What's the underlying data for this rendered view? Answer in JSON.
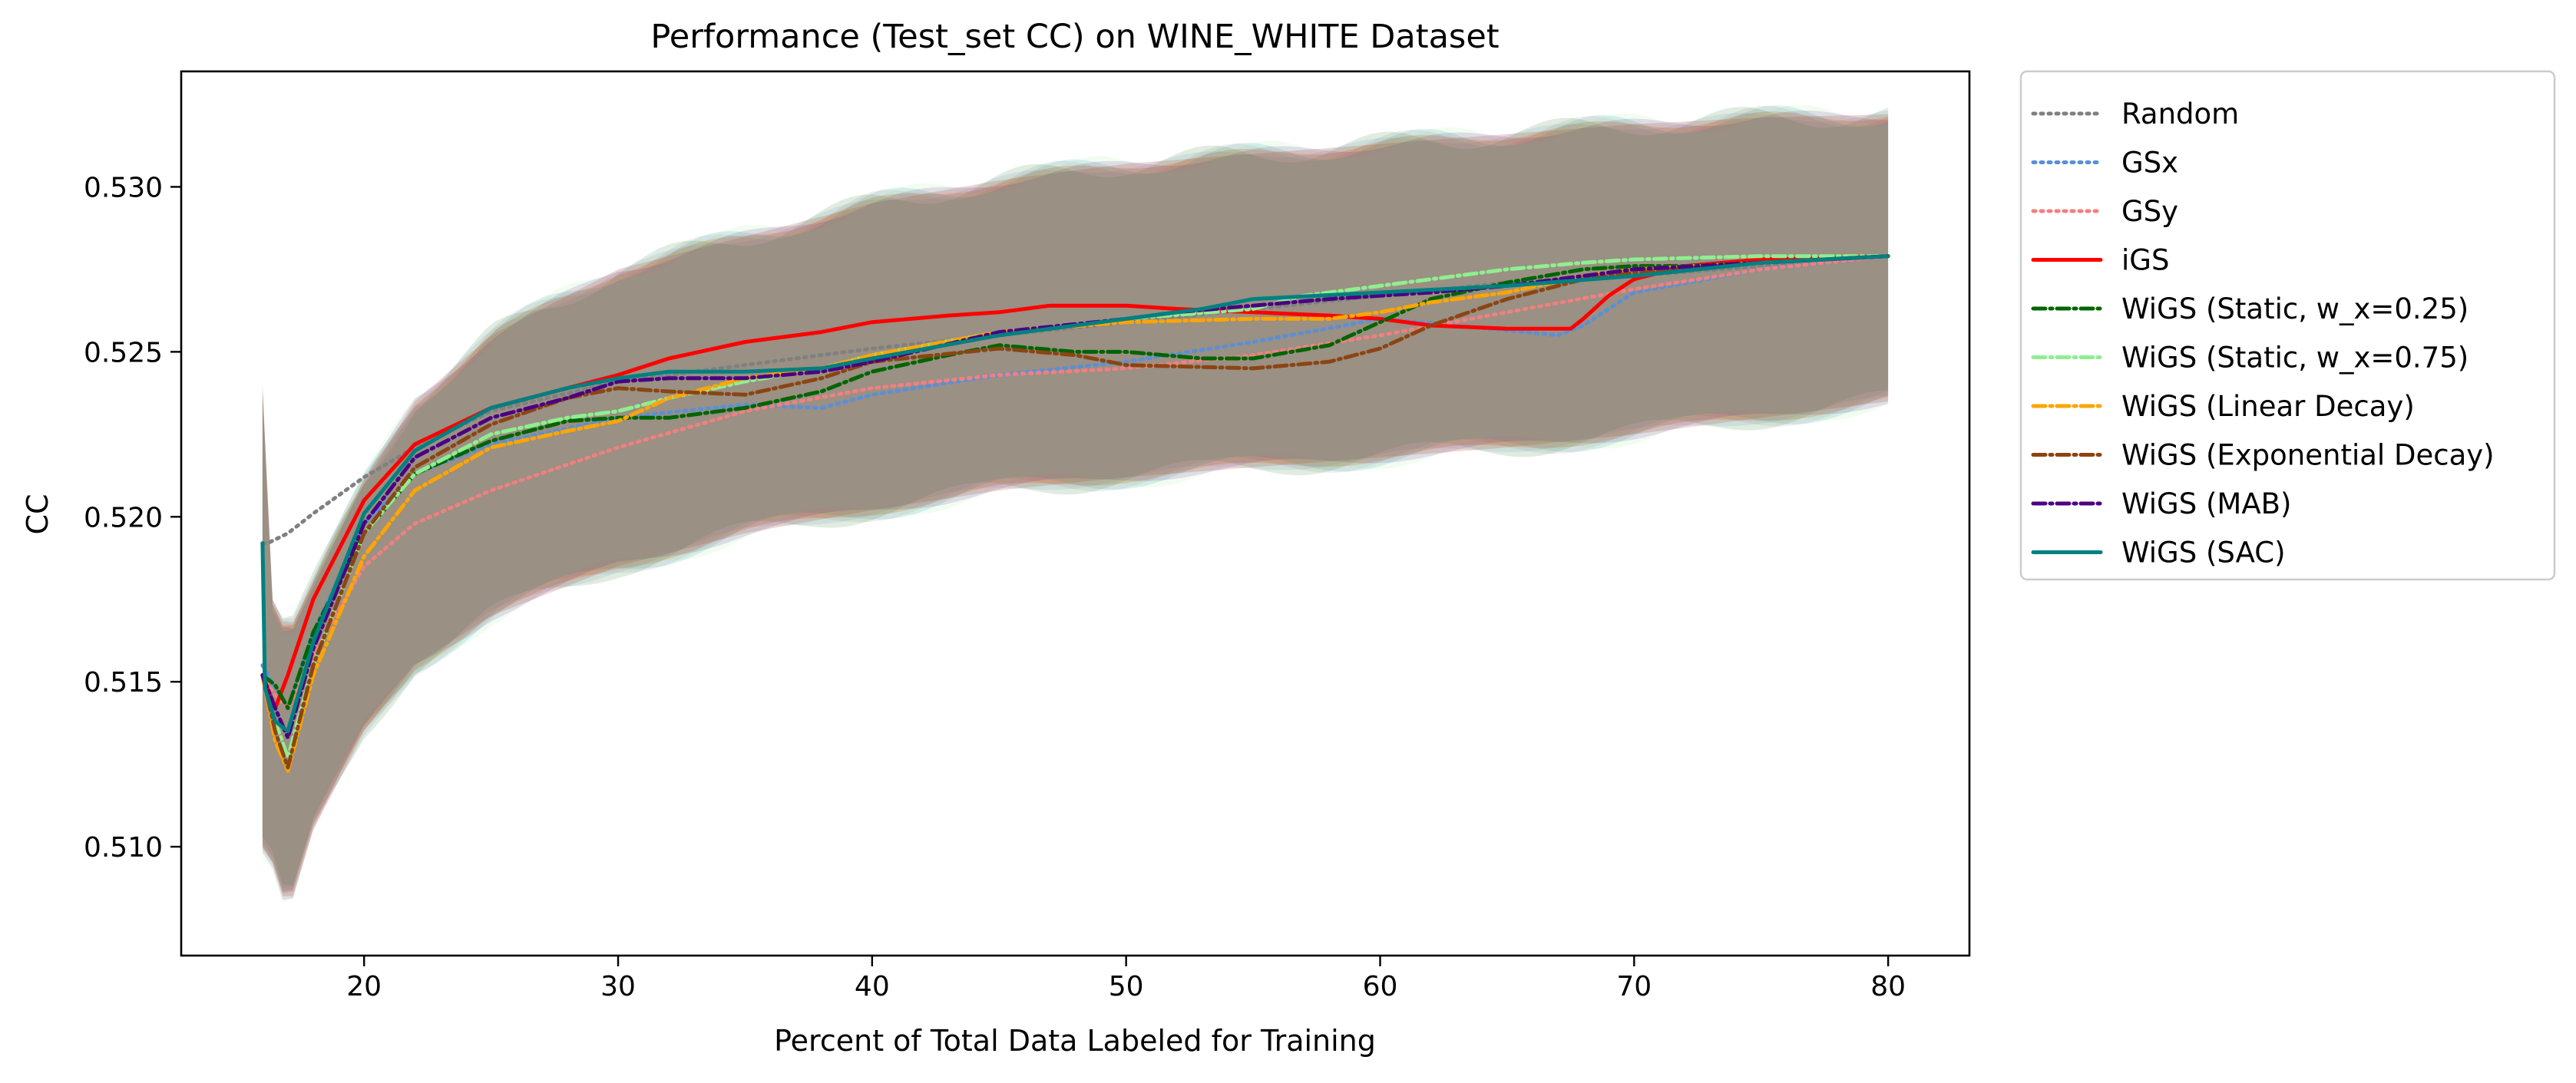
{
  "chart_data": {
    "type": "line",
    "title": "Performance (Test_set CC) on WINE_WHITE Dataset",
    "xlabel": "Percent of Total Data Labeled for Training",
    "ylabel": "CC",
    "xlim": [
      12.8,
      83.2
    ],
    "ylim": [
      0.5067,
      0.5335
    ],
    "xticks": [
      20,
      30,
      40,
      50,
      60,
      70,
      80
    ],
    "xtick_labels": [
      "20",
      "30",
      "40",
      "50",
      "60",
      "70",
      "80"
    ],
    "yticks": [
      0.51,
      0.515,
      0.52,
      0.525,
      0.53
    ],
    "ytick_labels": [
      "0.510",
      "0.515",
      "0.520",
      "0.525",
      "0.530"
    ],
    "grid": false,
    "legend": "outside-right",
    "band_summary": {
      "x": [
        16,
        16.4,
        17,
        18,
        20,
        22,
        25,
        30,
        35,
        40,
        45,
        50,
        55,
        60,
        65,
        70,
        75,
        80
      ],
      "upper": [
        0.524,
        0.5175,
        0.5165,
        0.518,
        0.521,
        0.5235,
        0.5255,
        0.5275,
        0.5285,
        0.5295,
        0.5302,
        0.5307,
        0.531,
        0.5313,
        0.5316,
        0.5319,
        0.5321,
        0.5322
      ],
      "lower": [
        0.51,
        0.5095,
        0.508,
        0.5105,
        0.5135,
        0.5155,
        0.517,
        0.5185,
        0.5195,
        0.5202,
        0.5208,
        0.5212,
        0.5215,
        0.5218,
        0.5221,
        0.5225,
        0.523,
        0.5235
      ]
    },
    "series": [
      {
        "name": "Random",
        "color": "#808080",
        "style": "dotted",
        "x": [
          16,
          16.2,
          17,
          18,
          20,
          22,
          25,
          30,
          35,
          40,
          45,
          50,
          55,
          60,
          65,
          70,
          75,
          80
        ],
        "y": [
          0.5192,
          0.5192,
          0.5195,
          0.5201,
          0.5212,
          0.5221,
          0.5232,
          0.5241,
          0.5246,
          0.5251,
          0.5255,
          0.5259,
          0.5263,
          0.5267,
          0.5271,
          0.5273,
          0.5276,
          0.5279
        ]
      },
      {
        "name": "GSx",
        "color": "#5b8fd6",
        "style": "dotted",
        "x": [
          16,
          16.5,
          17,
          18,
          20,
          22,
          25,
          30,
          35,
          38,
          40,
          45,
          50,
          55,
          60,
          63,
          67,
          68,
          70,
          75,
          80
        ],
        "y": [
          0.5155,
          0.5148,
          0.5142,
          0.5165,
          0.5198,
          0.5213,
          0.5222,
          0.523,
          0.5234,
          0.5233,
          0.5237,
          0.5243,
          0.5247,
          0.5253,
          0.526,
          0.5258,
          0.5255,
          0.5258,
          0.5268,
          0.5275,
          0.5279
        ]
      },
      {
        "name": "GSy",
        "color": "#f08080",
        "style": "dotted",
        "x": [
          16,
          16.5,
          17,
          18,
          20,
          22,
          25,
          30,
          35,
          40,
          45,
          50,
          55,
          60,
          65,
          70,
          75,
          80
        ],
        "y": [
          0.5152,
          0.5146,
          0.5142,
          0.5158,
          0.5185,
          0.5198,
          0.5208,
          0.5221,
          0.5232,
          0.5239,
          0.5243,
          0.5245,
          0.5249,
          0.5255,
          0.5262,
          0.5269,
          0.5275,
          0.5279
        ]
      },
      {
        "name": "iGS",
        "color": "#ff0000",
        "style": "solid",
        "x": [
          16,
          16.5,
          17,
          18,
          20,
          22,
          25,
          28,
          30,
          32,
          35,
          38,
          40,
          43,
          45,
          47,
          50,
          52,
          55,
          58,
          60,
          62,
          65,
          67.5,
          68,
          69,
          70,
          72,
          75,
          80
        ],
        "y": [
          0.5152,
          0.5142,
          0.5152,
          0.5175,
          0.5205,
          0.5222,
          0.5233,
          0.5239,
          0.5243,
          0.5248,
          0.5253,
          0.5256,
          0.5259,
          0.5261,
          0.5262,
          0.5264,
          0.5264,
          0.5263,
          0.5262,
          0.5261,
          0.526,
          0.5258,
          0.5257,
          0.5257,
          0.526,
          0.5267,
          0.5272,
          0.5276,
          0.5278,
          0.5279
        ]
      },
      {
        "name": "WiGS (Static, w_x=0.25)",
        "color": "#006400",
        "style": "dashdot",
        "x": [
          16,
          16.5,
          17,
          18,
          20,
          22,
          25,
          28,
          30,
          32,
          35,
          38,
          40,
          43,
          45,
          48,
          50,
          53,
          55,
          58,
          60,
          62,
          65,
          68,
          70,
          72,
          75,
          80
        ],
        "y": [
          0.5152,
          0.5149,
          0.5142,
          0.5165,
          0.5195,
          0.5213,
          0.5223,
          0.5229,
          0.523,
          0.523,
          0.5233,
          0.5238,
          0.5244,
          0.5249,
          0.5252,
          0.525,
          0.525,
          0.5248,
          0.5248,
          0.5252,
          0.5259,
          0.5266,
          0.5271,
          0.5275,
          0.5276,
          0.5276,
          0.5277,
          0.5279
        ]
      },
      {
        "name": "WiGS (Static, w_x=0.75)",
        "color": "#90ee90",
        "style": "dashdot",
        "x": [
          16,
          16.5,
          17,
          18,
          20,
          22,
          25,
          28,
          30,
          32,
          35,
          38,
          40,
          45,
          50,
          55,
          57,
          60,
          63,
          65,
          68,
          70,
          75,
          80
        ],
        "y": [
          0.5152,
          0.5138,
          0.5127,
          0.5155,
          0.5195,
          0.5213,
          0.5225,
          0.523,
          0.5232,
          0.5236,
          0.5241,
          0.5245,
          0.5249,
          0.5256,
          0.526,
          0.5263,
          0.5267,
          0.527,
          0.5273,
          0.5275,
          0.5277,
          0.5278,
          0.5279,
          0.5279
        ]
      },
      {
        "name": "WiGS (Linear Decay)",
        "color": "#ffa500",
        "style": "dashdot",
        "x": [
          16,
          16.5,
          17,
          18,
          20,
          22,
          25,
          28,
          30,
          32,
          35,
          38,
          40,
          45,
          50,
          55,
          58,
          60,
          62,
          65,
          68,
          70,
          75,
          80
        ],
        "y": [
          0.5152,
          0.5132,
          0.5123,
          0.5152,
          0.5188,
          0.5208,
          0.5221,
          0.5226,
          0.5229,
          0.5236,
          0.5242,
          0.5245,
          0.5249,
          0.5256,
          0.5259,
          0.526,
          0.526,
          0.5262,
          0.5265,
          0.5268,
          0.5273,
          0.5275,
          0.5277,
          0.5279
        ]
      },
      {
        "name": "WiGS (Exponential Decay)",
        "color": "#8b4513",
        "style": "dashdot",
        "x": [
          16,
          16.5,
          17,
          18,
          20,
          22,
          25,
          28,
          30,
          32,
          35,
          38,
          40,
          45,
          48,
          50,
          55,
          58,
          60,
          62,
          65,
          68,
          70,
          75,
          80
        ],
        "y": [
          0.5152,
          0.5135,
          0.5124,
          0.5155,
          0.5195,
          0.5215,
          0.5228,
          0.5236,
          0.5239,
          0.5238,
          0.5237,
          0.5242,
          0.5247,
          0.5251,
          0.5249,
          0.5246,
          0.5245,
          0.5247,
          0.5251,
          0.5258,
          0.5266,
          0.5272,
          0.5274,
          0.5277,
          0.5279
        ]
      },
      {
        "name": "WiGS (MAB)",
        "color": "#4b0082",
        "style": "dashdot",
        "x": [
          16,
          16.5,
          17,
          18,
          20,
          22,
          25,
          28,
          30,
          32,
          35,
          38,
          40,
          45,
          50,
          52,
          55,
          58,
          60,
          62,
          65,
          68,
          70,
          75,
          80
        ],
        "y": [
          0.5152,
          0.5142,
          0.5133,
          0.516,
          0.5198,
          0.5218,
          0.523,
          0.5236,
          0.5241,
          0.5242,
          0.5242,
          0.5244,
          0.5247,
          0.5256,
          0.526,
          0.5262,
          0.5264,
          0.5266,
          0.5267,
          0.5268,
          0.527,
          0.5273,
          0.5275,
          0.5277,
          0.5279
        ]
      },
      {
        "name": "WiGS (SAC)",
        "color": "#008080",
        "style": "solid",
        "x": [
          16,
          16.1,
          16.5,
          17,
          18,
          20,
          22,
          25,
          28,
          30,
          32,
          35,
          38,
          40,
          45,
          50,
          53,
          55,
          60,
          65,
          70,
          75,
          80
        ],
        "y": [
          0.5192,
          0.5148,
          0.5138,
          0.5135,
          0.5162,
          0.5201,
          0.522,
          0.5233,
          0.5239,
          0.5242,
          0.5244,
          0.5244,
          0.5245,
          0.5248,
          0.5255,
          0.526,
          0.5263,
          0.5266,
          0.5268,
          0.527,
          0.5273,
          0.5277,
          0.5279
        ]
      }
    ]
  }
}
